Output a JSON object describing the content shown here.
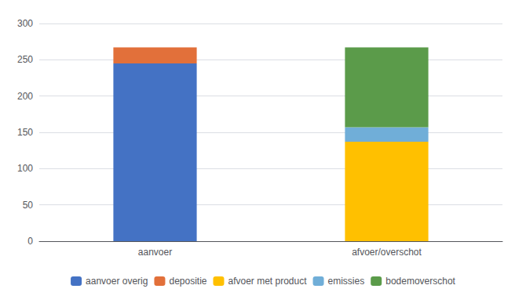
{
  "chart_data": {
    "type": "bar",
    "categories": [
      "aanvoer",
      "afvoer/overschot"
    ],
    "series": [
      {
        "name": "aanvoer overig",
        "color": "#4472C4",
        "values": [
          245,
          0
        ]
      },
      {
        "name": "depositie",
        "color": "#E2703A",
        "values": [
          22,
          0
        ]
      },
      {
        "name": "afvoer met product",
        "color": "#FFC000",
        "values": [
          0,
          137
        ]
      },
      {
        "name": "emissies",
        "color": "#70AED8",
        "values": [
          0,
          20
        ]
      },
      {
        "name": "bodemoverschot",
        "color": "#5B9B4A",
        "values": [
          0,
          110
        ]
      }
    ],
    "stacked": true,
    "ylim": [
      0,
      300
    ],
    "yticks": [
      0,
      50,
      100,
      150,
      200,
      250,
      300
    ],
    "grid": true,
    "legend": "bottom"
  }
}
